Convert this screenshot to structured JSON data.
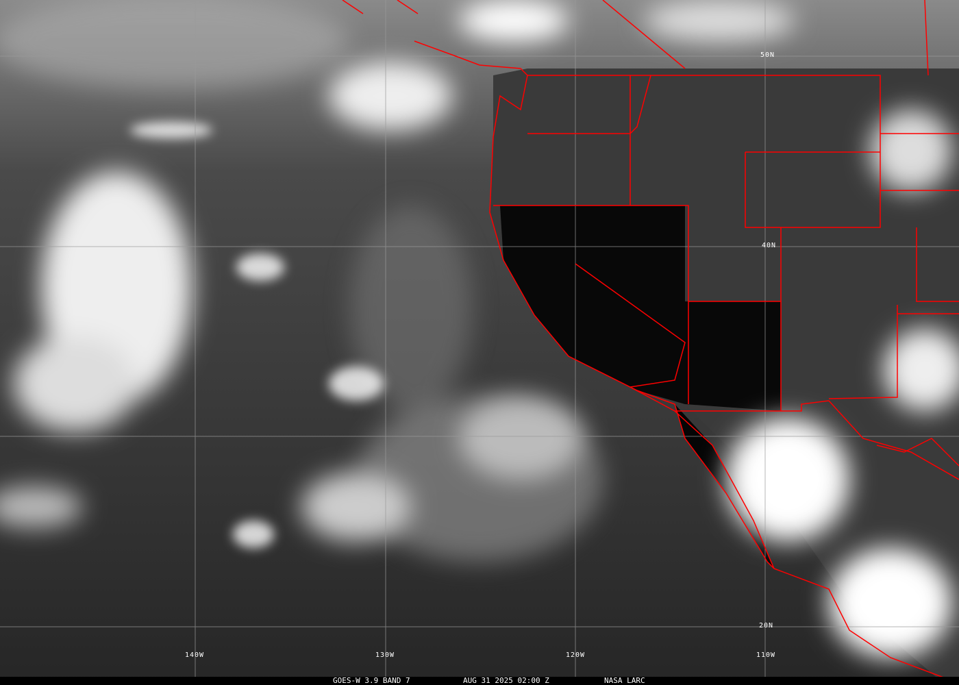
{
  "caption": {
    "satellite": "GOES-W 3.9 BAND 7",
    "datetime": "AUG 31 2025 02:00 Z",
    "source": "NASA LARC"
  },
  "lat_labels": [
    "50N",
    "40N",
    "20N"
  ],
  "lon_labels": [
    "140W",
    "130W",
    "120W",
    "110W"
  ],
  "colors": {
    "borders": "#ff0000",
    "grid": "#9a9a9a",
    "cloud": "#ffffff",
    "land": "#050505"
  }
}
